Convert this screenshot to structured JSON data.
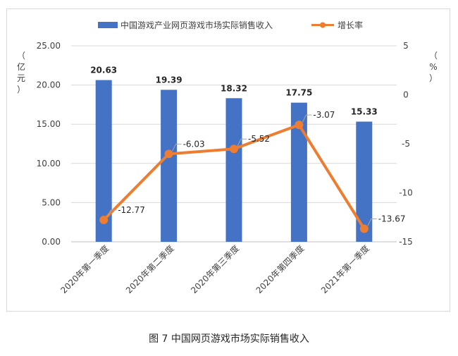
{
  "caption": "图 7  中国网页游戏市场实际销售收入",
  "chart_data": {
    "type": "bar+line",
    "categories": [
      "2020年第一季度",
      "2020年第二季度",
      "2020年第三季度",
      "2020年第四季度",
      "2021年第一季度"
    ],
    "series": [
      {
        "name": "中国游戏产业网页游戏市场实际销售收入",
        "type": "bar",
        "axis": "left",
        "color": "#4472c4",
        "values": [
          20.63,
          19.39,
          18.32,
          17.75,
          15.33
        ],
        "labels": [
          "20.63",
          "19.39",
          "18.32",
          "17.75",
          "15.33"
        ]
      },
      {
        "name": "增长率",
        "type": "line",
        "axis": "right",
        "color": "#ed7d31",
        "values": [
          -12.77,
          -6.03,
          -5.52,
          -3.07,
          -13.67
        ],
        "labels": [
          "-12.77",
          "-6.03",
          "-5.52",
          "-3.07",
          "-13.67"
        ]
      }
    ],
    "left_axis": {
      "unit_chars": [
        "（",
        "亿",
        "元",
        "）"
      ],
      "ylim": [
        0,
        25
      ],
      "ticks": [
        "0.00",
        "5.00",
        "10.00",
        "15.00",
        "20.00",
        "25.00"
      ]
    },
    "right_axis": {
      "unit_chars": [
        "（",
        "%",
        "）"
      ],
      "ylim": [
        -15,
        5
      ],
      "ticks": [
        "-15",
        "-10",
        "-5",
        "0",
        "5"
      ]
    },
    "legend_position": "top",
    "grid": "horizontal"
  }
}
